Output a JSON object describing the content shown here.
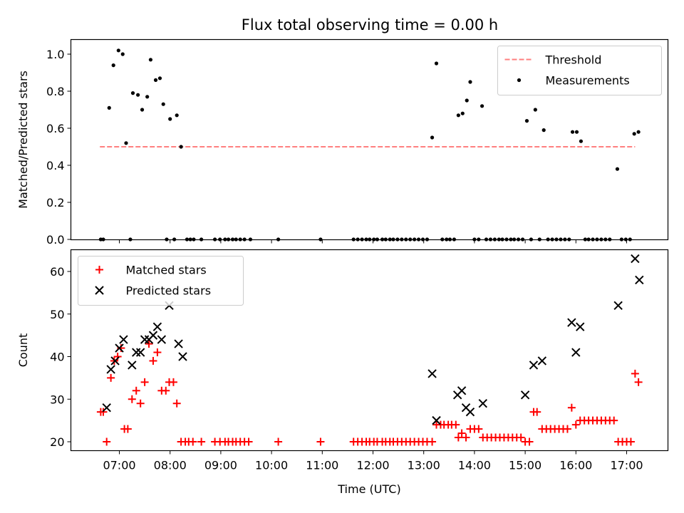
{
  "figure": {
    "title": "Flux total observing time = 0.00 h"
  },
  "chart_data": [
    {
      "type": "scatter",
      "ylabel": "Matched/Predicted stars",
      "xlabel": "",
      "ylim": [
        0.0,
        1.06
      ],
      "y_ticks": [
        "0.0",
        "0.2",
        "0.4",
        "0.6",
        "0.8",
        "1.0"
      ],
      "x_ticks": [
        "07:00",
        "08:00",
        "09:00",
        "10:00",
        "11:00",
        "12:00",
        "13:00",
        "14:00",
        "15:00",
        "16:00",
        "17:00"
      ],
      "legend_position": "upper-right",
      "threshold": {
        "name": "Threshold",
        "value": 0.5,
        "x_range": [
          "06:37",
          "17:10"
        ],
        "color": "#ff7f7f"
      },
      "series": [
        {
          "name": "Measurements",
          "color": "#000000",
          "marker": "dot",
          "points": [
            [
              "06:38",
              0.0
            ],
            [
              "06:41",
              0.0
            ],
            [
              "06:48",
              0.71
            ],
            [
              "06:53",
              0.94
            ],
            [
              "06:59",
              1.02
            ],
            [
              "07:04",
              1.0
            ],
            [
              "07:08",
              0.52
            ],
            [
              "07:13",
              0.0
            ],
            [
              "07:16",
              0.79
            ],
            [
              "07:22",
              0.78
            ],
            [
              "07:27",
              0.7
            ],
            [
              "07:33",
              0.77
            ],
            [
              "07:37",
              0.97
            ],
            [
              "07:43",
              0.86
            ],
            [
              "07:48",
              0.87
            ],
            [
              "07:52",
              0.73
            ],
            [
              "07:56",
              0.0
            ],
            [
              "08:00",
              0.65
            ],
            [
              "08:05",
              0.0
            ],
            [
              "08:08",
              0.67
            ],
            [
              "08:13",
              0.5
            ],
            [
              "08:20",
              0.0
            ],
            [
              "08:24",
              0.0
            ],
            [
              "08:28",
              0.0
            ],
            [
              "08:37",
              0.0
            ],
            [
              "08:53",
              0.0
            ],
            [
              "08:59",
              0.0
            ],
            [
              "09:05",
              0.0
            ],
            [
              "09:09",
              0.0
            ],
            [
              "09:14",
              0.0
            ],
            [
              "09:18",
              0.0
            ],
            [
              "09:23",
              0.0
            ],
            [
              "09:28",
              0.0
            ],
            [
              "09:35",
              0.0
            ],
            [
              "10:08",
              0.0
            ],
            [
              "10:58",
              0.0
            ],
            [
              "11:37",
              0.0
            ],
            [
              "11:42",
              0.0
            ],
            [
              "11:47",
              0.0
            ],
            [
              "11:52",
              0.0
            ],
            [
              "11:56",
              0.0
            ],
            [
              "12:01",
              0.0
            ],
            [
              "12:05",
              0.0
            ],
            [
              "12:11",
              0.0
            ],
            [
              "12:15",
              0.0
            ],
            [
              "12:20",
              0.0
            ],
            [
              "12:24",
              0.0
            ],
            [
              "12:29",
              0.0
            ],
            [
              "12:34",
              0.0
            ],
            [
              "12:39",
              0.0
            ],
            [
              "12:44",
              0.0
            ],
            [
              "12:49",
              0.0
            ],
            [
              "12:54",
              0.0
            ],
            [
              "12:59",
              0.0
            ],
            [
              "13:04",
              0.0
            ],
            [
              "13:10",
              0.55
            ],
            [
              "13:15",
              0.95
            ],
            [
              "13:22",
              0.0
            ],
            [
              "13:27",
              0.0
            ],
            [
              "13:31",
              0.0
            ],
            [
              "13:36",
              0.0
            ],
            [
              "13:41",
              0.67
            ],
            [
              "13:46",
              0.68
            ],
            [
              "13:51",
              0.75
            ],
            [
              "13:55",
              0.85
            ],
            [
              "14:00",
              0.0
            ],
            [
              "14:05",
              0.0
            ],
            [
              "14:09",
              0.72
            ],
            [
              "14:14",
              0.0
            ],
            [
              "14:19",
              0.0
            ],
            [
              "14:24",
              0.0
            ],
            [
              "14:29",
              0.0
            ],
            [
              "14:33",
              0.0
            ],
            [
              "14:38",
              0.0
            ],
            [
              "14:43",
              0.0
            ],
            [
              "14:47",
              0.0
            ],
            [
              "14:52",
              0.0
            ],
            [
              "14:57",
              0.0
            ],
            [
              "15:02",
              0.64
            ],
            [
              "15:07",
              0.0
            ],
            [
              "15:12",
              0.7
            ],
            [
              "15:17",
              0.0
            ],
            [
              "15:22",
              0.59
            ],
            [
              "15:27",
              0.0
            ],
            [
              "15:32",
              0.0
            ],
            [
              "15:37",
              0.0
            ],
            [
              "15:42",
              0.0
            ],
            [
              "15:47",
              0.0
            ],
            [
              "15:52",
              0.0
            ],
            [
              "15:56",
              0.58
            ],
            [
              "16:01",
              0.58
            ],
            [
              "16:06",
              0.53
            ],
            [
              "16:11",
              0.0
            ],
            [
              "16:15",
              0.0
            ],
            [
              "16:20",
              0.0
            ],
            [
              "16:25",
              0.0
            ],
            [
              "16:30",
              0.0
            ],
            [
              "16:35",
              0.0
            ],
            [
              "16:40",
              0.0
            ],
            [
              "16:49",
              0.38
            ],
            [
              "16:54",
              0.0
            ],
            [
              "16:59",
              0.0
            ],
            [
              "17:04",
              0.0
            ],
            [
              "17:09",
              0.57
            ],
            [
              "17:14",
              0.58
            ]
          ]
        }
      ]
    },
    {
      "type": "scatter",
      "ylabel": "Count",
      "xlabel": "Time (UTC)",
      "ylim": [
        18,
        65
      ],
      "y_ticks": [
        "20",
        "30",
        "40",
        "50",
        "60"
      ],
      "x_ticks": [
        "07:00",
        "08:00",
        "09:00",
        "10:00",
        "11:00",
        "12:00",
        "13:00",
        "14:00",
        "15:00",
        "16:00",
        "17:00"
      ],
      "legend_position": "upper-left",
      "series": [
        {
          "name": "Matched stars",
          "color": "#ff0000",
          "marker": "plus",
          "points": [
            [
              "06:38",
              27
            ],
            [
              "06:41",
              27
            ],
            [
              "06:45",
              20
            ],
            [
              "06:50",
              35
            ],
            [
              "06:54",
              39
            ],
            [
              "06:58",
              40
            ],
            [
              "07:02",
              42
            ],
            [
              "07:06",
              23
            ],
            [
              "07:10",
              23
            ],
            [
              "07:15",
              30
            ],
            [
              "07:20",
              32
            ],
            [
              "07:25",
              29
            ],
            [
              "07:30",
              34
            ],
            [
              "07:35",
              43
            ],
            [
              "07:40",
              39
            ],
            [
              "07:45",
              41
            ],
            [
              "07:50",
              32
            ],
            [
              "07:55",
              32
            ],
            [
              "07:59",
              34
            ],
            [
              "08:04",
              34
            ],
            [
              "08:08",
              29
            ],
            [
              "08:13",
              20
            ],
            [
              "08:18",
              20
            ],
            [
              "08:22",
              20
            ],
            [
              "08:27",
              20
            ],
            [
              "08:37",
              20
            ],
            [
              "08:53",
              20
            ],
            [
              "08:59",
              20
            ],
            [
              "09:05",
              20
            ],
            [
              "09:09",
              20
            ],
            [
              "09:14",
              20
            ],
            [
              "09:18",
              20
            ],
            [
              "09:23",
              20
            ],
            [
              "09:28",
              20
            ],
            [
              "09:33",
              20
            ],
            [
              "10:08",
              20
            ],
            [
              "10:58",
              20
            ],
            [
              "11:37",
              20
            ],
            [
              "11:42",
              20
            ],
            [
              "11:47",
              20
            ],
            [
              "11:52",
              20
            ],
            [
              "11:56",
              20
            ],
            [
              "12:01",
              20
            ],
            [
              "12:05",
              20
            ],
            [
              "12:11",
              20
            ],
            [
              "12:15",
              20
            ],
            [
              "12:20",
              20
            ],
            [
              "12:24",
              20
            ],
            [
              "12:29",
              20
            ],
            [
              "12:34",
              20
            ],
            [
              "12:39",
              20
            ],
            [
              "12:44",
              20
            ],
            [
              "12:49",
              20
            ],
            [
              "12:54",
              20
            ],
            [
              "12:59",
              20
            ],
            [
              "13:04",
              20
            ],
            [
              "13:10",
              20
            ],
            [
              "13:15",
              24
            ],
            [
              "13:20",
              24
            ],
            [
              "13:24",
              24
            ],
            [
              "13:29",
              24
            ],
            [
              "13:33",
              24
            ],
            [
              "13:38",
              24
            ],
            [
              "13:41",
              21
            ],
            [
              "13:45",
              22
            ],
            [
              "13:50",
              21
            ],
            [
              "13:55",
              23
            ],
            [
              "14:00",
              23
            ],
            [
              "14:05",
              23
            ],
            [
              "14:10",
              21
            ],
            [
              "14:15",
              21
            ],
            [
              "14:20",
              21
            ],
            [
              "14:25",
              21
            ],
            [
              "14:30",
              21
            ],
            [
              "14:35",
              21
            ],
            [
              "14:40",
              21
            ],
            [
              "14:45",
              21
            ],
            [
              "14:50",
              21
            ],
            [
              "14:55",
              21
            ],
            [
              "15:00",
              20
            ],
            [
              "15:05",
              20
            ],
            [
              "15:10",
              27
            ],
            [
              "15:14",
              27
            ],
            [
              "15:20",
              23
            ],
            [
              "15:25",
              23
            ],
            [
              "15:30",
              23
            ],
            [
              "15:35",
              23
            ],
            [
              "15:40",
              23
            ],
            [
              "15:45",
              23
            ],
            [
              "15:50",
              23
            ],
            [
              "15:55",
              28
            ],
            [
              "16:00",
              24
            ],
            [
              "16:05",
              25
            ],
            [
              "16:10",
              25
            ],
            [
              "16:15",
              25
            ],
            [
              "16:20",
              25
            ],
            [
              "16:25",
              25
            ],
            [
              "16:30",
              25
            ],
            [
              "16:35",
              25
            ],
            [
              "16:40",
              25
            ],
            [
              "16:45",
              25
            ],
            [
              "16:50",
              20
            ],
            [
              "16:55",
              20
            ],
            [
              "17:00",
              20
            ],
            [
              "17:05",
              20
            ],
            [
              "17:10",
              36
            ],
            [
              "17:14",
              34
            ]
          ]
        },
        {
          "name": "Predicted stars",
          "color": "#000000",
          "marker": "x",
          "points": [
            [
              "06:45",
              28
            ],
            [
              "06:50",
              37
            ],
            [
              "06:55",
              39
            ],
            [
              "07:00",
              42
            ],
            [
              "07:05",
              44
            ],
            [
              "07:15",
              38
            ],
            [
              "07:20",
              41
            ],
            [
              "07:25",
              41
            ],
            [
              "07:30",
              44
            ],
            [
              "07:35",
              44
            ],
            [
              "07:40",
              45
            ],
            [
              "07:45",
              47
            ],
            [
              "07:50",
              44
            ],
            [
              "07:59",
              52
            ],
            [
              "08:10",
              43
            ],
            [
              "08:15",
              40
            ],
            [
              "13:10",
              36
            ],
            [
              "13:15",
              25
            ],
            [
              "13:40",
              31
            ],
            [
              "13:45",
              32
            ],
            [
              "13:50",
              28
            ],
            [
              "13:55",
              27
            ],
            [
              "14:10",
              29
            ],
            [
              "15:00",
              31
            ],
            [
              "15:10",
              38
            ],
            [
              "15:20",
              39
            ],
            [
              "15:55",
              48
            ],
            [
              "16:00",
              41
            ],
            [
              "16:05",
              47
            ],
            [
              "16:50",
              52
            ],
            [
              "17:10",
              63
            ],
            [
              "17:15",
              58
            ]
          ]
        }
      ]
    }
  ]
}
